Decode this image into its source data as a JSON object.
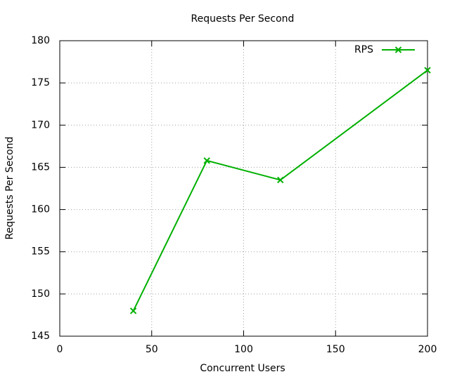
{
  "chart_data": {
    "type": "line",
    "title": "Requests Per Second",
    "xlabel": "Concurrent Users",
    "ylabel": "Requests Per Second",
    "x": [
      40,
      80,
      120,
      200
    ],
    "series": [
      {
        "name": "RPS",
        "color": "#00b000",
        "marker": "x",
        "values": [
          148,
          165.8,
          163.5,
          176.5
        ]
      }
    ],
    "xlim": [
      0,
      200
    ],
    "xticks": [
      0,
      50,
      100,
      150,
      200
    ],
    "ylim": [
      145,
      180
    ],
    "yticks": [
      145,
      150,
      155,
      160,
      165,
      170,
      175,
      180
    ],
    "grid": true,
    "legend": "top-right"
  }
}
